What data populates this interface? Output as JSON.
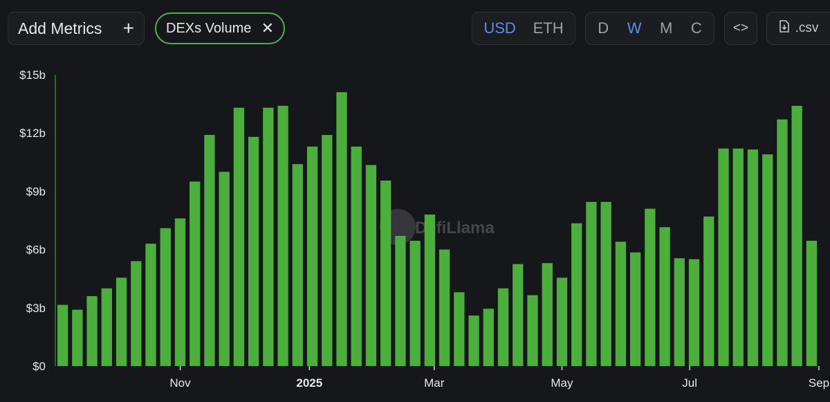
{
  "toolbar": {
    "add_metrics_label": "Add Metrics",
    "add_metrics_icon": "+",
    "metric_chip_label": "DEXs Volume",
    "metric_chip_close_icon": "✕",
    "currency_options": [
      "USD",
      "ETH"
    ],
    "currency_selected": "USD",
    "period_options": [
      "D",
      "W",
      "M",
      "C"
    ],
    "period_selected": "W",
    "embed_label": "<>",
    "csv_label": ".csv"
  },
  "colors": {
    "background": "#16171a",
    "bar": "#4caf3d",
    "axis_line": "#3a7d2a",
    "active_toggle": "#5b8cf0",
    "chip_border": "#4caf50"
  },
  "watermark": "DefiLlama",
  "chart_data": {
    "type": "bar",
    "title": "",
    "xlabel": "",
    "ylabel": "",
    "unit": "USD",
    "ylim": [
      0,
      15
    ],
    "y_ticks": [
      "$0",
      "$3b",
      "$6b",
      "$9b",
      "$12b",
      "$15b"
    ],
    "y_tick_values": [
      0,
      3,
      6,
      9,
      12,
      15
    ],
    "x_ticks": [
      {
        "label": "Nov",
        "bar_index": 8.5,
        "bold": false
      },
      {
        "label": "2025",
        "bar_index": 17.3,
        "bold": true
      },
      {
        "label": "Mar",
        "bar_index": 25.8,
        "bold": false
      },
      {
        "label": "May",
        "bar_index": 34.5,
        "bold": false
      },
      {
        "label": "Jul",
        "bar_index": 43.2,
        "bold": false
      },
      {
        "label": "Sep",
        "bar_index": 52.0,
        "bold": false
      }
    ],
    "grid": false,
    "series": [
      {
        "name": "DEXs Volume",
        "values": [
          3.15,
          2.9,
          3.6,
          4.0,
          4.55,
          5.4,
          6.3,
          7.1,
          7.6,
          9.5,
          11.9,
          10.0,
          13.3,
          11.8,
          13.3,
          13.4,
          10.4,
          11.3,
          11.9,
          14.1,
          11.3,
          10.35,
          9.55,
          6.7,
          6.45,
          7.8,
          6.0,
          3.8,
          2.6,
          2.95,
          4.0,
          5.25,
          3.65,
          5.3,
          4.55,
          7.35,
          8.45,
          8.45,
          6.4,
          5.85,
          8.1,
          7.15,
          5.55,
          5.5,
          7.7,
          11.2,
          11.2,
          11.15,
          10.9,
          12.7,
          13.4,
          6.45
        ]
      }
    ]
  }
}
